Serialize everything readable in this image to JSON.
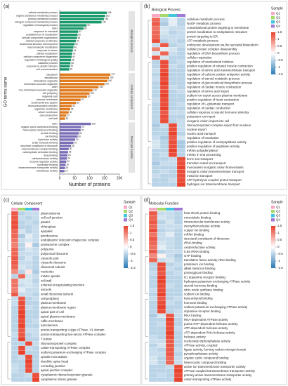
{
  "chart_data": [
    {
      "type": "bar",
      "panel": "(a)",
      "ylabel": "GO terms name",
      "xlabel": "Number of proteins",
      "xlim": [
        0,
        200
      ],
      "xticks": [
        0,
        50,
        100,
        150,
        200
      ],
      "groups": [
        {
          "name": "Biological process",
          "color": "#1a9a6c",
          "categories": [
            "cellular metabolic process",
            "organic substance metabolic process",
            "primary metabolic process",
            "nitrogen compound metabolic process",
            "regulation of biological process",
            "other",
            "response to chemical",
            "establishment of localization",
            "cellular component organization",
            "cellular response to stimulus",
            "anatomical structure development",
            "macromolecule localization",
            "response to stress",
            "cellular localization",
            "cellular component biogenesis",
            "regulation of biological quality",
            "catabolic process",
            "response to abiotic stimulus",
            "cell communication"
          ],
          "values": [
            158,
            152,
            148,
            140,
            90,
            80,
            62,
            60,
            58,
            54,
            50,
            46,
            44,
            42,
            40,
            38,
            36,
            34,
            32
          ]
        },
        {
          "name": "Cellular component",
          "color": "#e07b1e",
          "categories": [
            "cytoplasm",
            "intracellular",
            "intracellular organelle",
            "membrane-bounded organelle",
            "other",
            "non-membrane-bounded organelle",
            "cell periphery",
            "organelle part",
            "plasma membrane",
            "endomembrane system",
            "ribonucleoprotein complex",
            "organelle membrane",
            "whole membrane",
            "cell-cell junction",
            "cell wall"
          ],
          "values": [
            170,
            165,
            160,
            150,
            130,
            110,
            100,
            92,
            70,
            55,
            40,
            35,
            30,
            22,
            18
          ]
        },
        {
          "name": "Molecular function",
          "color": "#7b70b8",
          "categories": [
            "other",
            "organic cyclic compound binding",
            "heterocyclic compound binding",
            "protein binding",
            "ion binding",
            "hydrolase activity",
            "small molecule binding",
            "structural constituent of ribosome",
            "macromolecule complex binding",
            "carbohydrate derivative binding",
            "drug binding",
            "oxidoreductase activity",
            "enzyme regulator activity",
            "nucleotide binding",
            "transmembrane transporter activity",
            "transferase activity"
          ],
          "values": [
            105,
            72,
            70,
            64,
            60,
            52,
            46,
            38,
            30,
            28,
            26,
            24,
            22,
            20,
            18,
            16
          ]
        }
      ]
    },
    {
      "type": "heatmap",
      "panel": "(b)",
      "title": "Biological Process",
      "legend_title": "Sample",
      "columns": [
        "Q1",
        "Q2",
        "Q3",
        "Q4"
      ],
      "column_colors": [
        "#f7a8c4",
        "#a6d96a",
        "#41c6e0",
        "#a07ad6"
      ],
      "colorscale": {
        "colors": [
          "#2c7bb6",
          "#ffffff",
          "#e8412c"
        ],
        "lim": [
          -1.5,
          1.5
        ],
        "ticks": [
          1.5,
          1,
          0.5,
          0,
          -0.5,
          -1,
          -1.5
        ]
      },
      "rows": [
        "cellulose metabolic process",
        "NADP metabolic process",
        "cotranslational protein targeting to membrane",
        "protein localization to endoplasmic reticulum",
        "protein targeting to ER",
        "ATP metabolic process",
        "embryonic development via the syncytial blastoderm",
        "cellular protein complex disassembly",
        "regulation of DNA biosynthetic process",
        "cellular respiration",
        "regulation of translational initiation",
        "positive regulation of striated muscle contraction",
        "regulation of amino acid transmembrane transport",
        "regulation of calcium:sodium antiporter activity",
        "regulation of steroid metabolic process",
        "regulation of glucocorticoid biosynthetic process",
        "regulation of cardiac muscle contraction",
        "regulation of amino acid import",
        "sodium ion export across plasma membrane",
        "positive regulation of heart contraction",
        "regulation of L-glutamate transport",
        "regulation of cardiac conduction",
        "cellular response to steroid hormone stimulus",
        "potassium ion import",
        "inorganic cation import into cell",
        "ribonucleoprotein complex export from nucleus",
        "nuclear export",
        "nucleic acid transport",
        "regulation of translation",
        "positive regulation of endopeptidase activity",
        "positive regulation of peptidase activity",
        "mRNA polyadenylation",
        "mRNA 3'-end processing",
        "ferric iron transport",
        "transition metal ion transport",
        "monovalent inorganic cation homeostasis",
        "inorganic cation transmembrane transport",
        "metal ion transport",
        "ATP hydrolysis coupled proton transport",
        "hydrogen ion transmembrane transport"
      ],
      "values": [
        [
          1.2,
          -0.5,
          -0.2,
          -0.5
        ],
        [
          1.3,
          -0.6,
          -0.2,
          -0.5
        ],
        [
          1.1,
          -0.3,
          -0.4,
          -0.4
        ],
        [
          1.2,
          -0.3,
          -0.5,
          -0.4
        ],
        [
          1.2,
          -0.4,
          -0.4,
          -0.4
        ],
        [
          1.4,
          -0.5,
          -0.4,
          -0.5
        ],
        [
          -0.4,
          1.3,
          -0.5,
          -0.4
        ],
        [
          1.0,
          -0.2,
          -0.3,
          -0.5
        ],
        [
          -0.3,
          1.2,
          -0.4,
          -0.5
        ],
        [
          1.3,
          -0.3,
          -0.5,
          -0.5
        ],
        [
          -0.5,
          1.4,
          -0.5,
          -0.4
        ],
        [
          -0.5,
          1.4,
          -0.4,
          -0.5
        ],
        [
          -0.4,
          1.4,
          -0.5,
          -0.5
        ],
        [
          -0.5,
          1.5,
          -0.5,
          -0.5
        ],
        [
          -0.4,
          1.4,
          -0.5,
          -0.5
        ],
        [
          -0.5,
          1.5,
          -0.5,
          -0.5
        ],
        [
          -0.5,
          1.4,
          -0.4,
          -0.5
        ],
        [
          -0.5,
          1.4,
          -0.5,
          -0.4
        ],
        [
          -0.5,
          1.5,
          -0.5,
          -0.5
        ],
        [
          -0.4,
          1.4,
          -0.5,
          -0.5
        ],
        [
          -0.5,
          1.4,
          -0.5,
          -0.4
        ],
        [
          -0.5,
          1.5,
          -0.5,
          -0.5
        ],
        [
          -0.5,
          1.3,
          -0.4,
          -0.4
        ],
        [
          -0.5,
          1.4,
          -0.5,
          -0.5
        ],
        [
          -0.5,
          1.4,
          -0.5,
          -0.4
        ],
        [
          -0.6,
          -0.4,
          1.4,
          -0.4
        ],
        [
          -0.5,
          -0.5,
          1.4,
          -0.4
        ],
        [
          -0.5,
          -0.5,
          1.5,
          -0.5
        ],
        [
          -0.4,
          -0.6,
          1.3,
          -0.3
        ],
        [
          -0.3,
          -0.5,
          1.4,
          -0.6
        ],
        [
          -0.3,
          -0.5,
          1.4,
          -0.6
        ],
        [
          -0.5,
          -0.5,
          1.5,
          -0.5
        ],
        [
          -0.5,
          -0.4,
          1.4,
          -0.5
        ],
        [
          -0.5,
          -0.5,
          -0.4,
          1.4
        ],
        [
          -0.6,
          -0.4,
          -0.4,
          1.4
        ],
        [
          -0.5,
          -0.5,
          -0.5,
          1.5
        ],
        [
          -0.5,
          -0.4,
          -0.5,
          1.4
        ],
        [
          -0.4,
          -0.5,
          -0.5,
          1.4
        ],
        [
          -0.5,
          -0.5,
          -0.4,
          1.4
        ],
        [
          -0.5,
          -0.5,
          -0.5,
          1.5
        ]
      ]
    },
    {
      "type": "heatmap",
      "panel": "(c)",
      "title": "Cellular Component",
      "legend_title": "Sample",
      "columns": [
        "Q1",
        "Q2",
        "Q3",
        "Q4"
      ],
      "column_colors": [
        "#f7a8c4",
        "#a6d96a",
        "#41c6e0",
        "#a07ad6"
      ],
      "colorscale": {
        "colors": [
          "#2c7bb6",
          "#ffffff",
          "#e8412c"
        ],
        "lim": [
          -1.5,
          1.5
        ],
        "ticks": [
          1.5,
          1,
          0.5,
          0,
          -0.5,
          -1,
          -1.5
        ]
      },
      "rows": [
        "plasmodesma",
        "cell-cell junction",
        "plastid",
        "chloroplast",
        "apoplast",
        "preribosome",
        "endoplasmic reticulum chaperone complex",
        "proteasome complex",
        "polysome",
        "polysomal ribosome",
        "cytosolic part",
        "cytosolic ribosome",
        "ribosomal subunit",
        "nucleolus",
        "mitotic spindle",
        "cell wall",
        "external encapsulating structure",
        "vacuole",
        "small ribosomal subunit",
        "cell periphery",
        "plasma membrane",
        "plasma membrane region",
        "apical part of cell",
        "apical plasma membrane",
        "ruffle membrane",
        "sarcolemma",
        "proton-transporting V-type ATPase, V1 domain",
        "proton-transporting two-sector ATPase complex",
        "T-tubule",
        "ribonucleoprotein complex",
        "cation-transporting ATPase complex",
        "sodium:potassium-exchanging ATPase complex",
        "spindle microtubule",
        "dendritic spine head",
        "occluding junction",
        "apical junction complex",
        "cytoplasmic ribonucleoprotein granule",
        "cytoplasmic stress granule"
      ],
      "values": [
        [
          1.3,
          -0.5,
          -0.4,
          -0.4
        ],
        [
          1.3,
          -0.4,
          -0.5,
          -0.4
        ],
        [
          1.4,
          -0.5,
          -0.4,
          -0.5
        ],
        [
          1.4,
          -0.5,
          -0.5,
          -0.4
        ],
        [
          1.2,
          -0.3,
          -0.5,
          -0.4
        ],
        [
          1.2,
          -0.6,
          -0.2,
          -0.4
        ],
        [
          1.1,
          -0.4,
          -0.3,
          -0.4
        ],
        [
          1.0,
          -0.5,
          0.1,
          -0.6
        ],
        [
          1.2,
          -0.5,
          -0.3,
          -0.4
        ],
        [
          1.2,
          -0.4,
          -0.4,
          -0.4
        ],
        [
          1.3,
          -0.5,
          -0.3,
          -0.5
        ],
        [
          1.3,
          -0.4,
          -0.4,
          -0.5
        ],
        [
          1.2,
          -0.3,
          -0.4,
          -0.5
        ],
        [
          0.9,
          -0.5,
          0.2,
          -0.6
        ],
        [
          -0.5,
          1.2,
          -0.3,
          -0.4
        ],
        [
          1.1,
          -0.3,
          -0.3,
          -0.5
        ],
        [
          1.1,
          -0.4,
          -0.3,
          -0.4
        ],
        [
          1.0,
          -0.2,
          -0.4,
          -0.4
        ],
        [
          1.3,
          -0.4,
          -0.4,
          -0.5
        ],
        [
          -0.4,
          1.3,
          -0.5,
          -0.4
        ],
        [
          -0.4,
          1.4,
          -0.5,
          -0.5
        ],
        [
          -0.5,
          1.4,
          -0.4,
          -0.5
        ],
        [
          -0.5,
          1.5,
          -0.5,
          -0.5
        ],
        [
          -0.5,
          1.5,
          -0.5,
          -0.5
        ],
        [
          -0.5,
          1.4,
          -0.5,
          -0.4
        ],
        [
          -0.5,
          1.5,
          -0.5,
          -0.5
        ],
        [
          -0.5,
          1.3,
          -0.4,
          -0.4
        ],
        [
          -0.4,
          1.3,
          -0.5,
          -0.4
        ],
        [
          -0.5,
          1.5,
          -0.5,
          -0.5
        ],
        [
          -0.5,
          -0.5,
          1.4,
          -0.4
        ],
        [
          -0.5,
          1.4,
          -0.4,
          -0.5
        ],
        [
          -0.5,
          1.5,
          -0.5,
          -0.5
        ],
        [
          -0.5,
          -0.4,
          1.4,
          -0.5
        ],
        [
          -0.5,
          -0.5,
          1.5,
          -0.5
        ],
        [
          -0.4,
          -0.5,
          1.4,
          -0.5
        ],
        [
          -0.4,
          -0.5,
          1.4,
          -0.5
        ],
        [
          -0.5,
          -0.5,
          -0.4,
          1.4
        ],
        [
          -0.5,
          -0.5,
          -0.5,
          1.5
        ]
      ]
    },
    {
      "type": "heatmap",
      "panel": "(d)",
      "title": "Molecular Function",
      "legend_title": "Sample",
      "columns": [
        "Q1",
        "Q2",
        "Q3",
        "Q4"
      ],
      "column_colors": [
        "#f7a8c4",
        "#a6d96a",
        "#41c6e0",
        "#a07ad6"
      ],
      "colorscale": {
        "colors": [
          "#2c7bb6",
          "#ffffff",
          "#e8412c"
        ],
        "lim": [
          -1.5,
          1.5
        ],
        "ticks": [
          1.5,
          1,
          0.5,
          0,
          -0.5,
          -1,
          -1.5
        ]
      },
      "rows": [
        "heat shock protein binding",
        "microtubule binding",
        "intramolecular transferase activity",
        "deoxyribonuclease activity",
        "copper ion binding",
        "mRNA binding",
        "structural constituent of ribosome",
        "rRNA binding",
        "oxidoreductase activity",
        "5.8S rRNA binding",
        "GTP binding",
        "translation factor activity, RNA binding",
        "potassium ion binding",
        "alkali metal ion binding",
        "proteoglycan binding",
        "D1 dopamine receptor binding",
        "hydrogen:potassium-exchanging ATPase activity",
        "steroid hormone binding",
        "nitric-oxide synthase binding",
        "sodium ion binding",
        "beta-amyloid binding",
        "hormone binding",
        "sodium:potassium-exchanging ATPase activity",
        "dopamine receptor binding",
        "RNA binding",
        "RNA-dependent ATPase activity",
        "purine NTP-dependent helicase activity",
        "ATP-dependent helicase activity",
        "ATP-dependent RNA helicase activity",
        "helicase activity",
        "nucleoside-triphosphatase activity",
        "ATPase activity, coupled",
        "ligase activity, forming carbon-nitrogen bonds",
        "pyrophosphatase activity",
        "organic cyclic compound binding",
        "heterocyclic compound binding",
        "active ion transmembrane transporter activity",
        "ATPase coupled transmembrane transporter activity",
        "primary active transmembrane transporter activity",
        "cation-transporting ATPase activity"
      ],
      "values": [
        [
          1.3,
          -0.4,
          -0.4,
          -0.5
        ],
        [
          1.2,
          -0.3,
          -0.4,
          -0.5
        ],
        [
          1.3,
          -0.5,
          -0.3,
          -0.5
        ],
        [
          1.2,
          -0.4,
          -0.4,
          -0.4
        ],
        [
          1.4,
          -0.5,
          -0.4,
          -0.5
        ],
        [
          1.1,
          -0.4,
          -0.2,
          -0.5
        ],
        [
          1.3,
          -0.4,
          -0.4,
          -0.5
        ],
        [
          1.2,
          -0.3,
          -0.4,
          -0.5
        ],
        [
          1.1,
          -0.2,
          -0.4,
          -0.5
        ],
        [
          1.3,
          -0.5,
          -0.4,
          -0.4
        ],
        [
          0.9,
          0.1,
          -0.4,
          -0.6
        ],
        [
          1.2,
          -0.4,
          -0.3,
          -0.5
        ],
        [
          -0.5,
          1.4,
          -0.5,
          -0.4
        ],
        [
          -0.5,
          1.4,
          -0.4,
          -0.5
        ],
        [
          -0.4,
          1.3,
          -0.5,
          -0.4
        ],
        [
          -0.5,
          1.5,
          -0.5,
          -0.5
        ],
        [
          -0.5,
          1.5,
          -0.5,
          -0.5
        ],
        [
          -0.5,
          1.4,
          -0.4,
          -0.5
        ],
        [
          -0.4,
          1.4,
          -0.5,
          -0.5
        ],
        [
          -0.5,
          1.5,
          -0.5,
          -0.5
        ],
        [
          -0.4,
          1.3,
          -0.5,
          -0.4
        ],
        [
          -0.5,
          1.4,
          -0.4,
          -0.5
        ],
        [
          -0.5,
          1.5,
          -0.5,
          -0.5
        ],
        [
          -0.5,
          1.4,
          -0.5,
          -0.4
        ],
        [
          -0.6,
          -0.3,
          1.3,
          -0.4
        ],
        [
          -0.5,
          -0.5,
          1.5,
          -0.5
        ],
        [
          -0.5,
          -0.4,
          1.4,
          -0.5
        ],
        [
          -0.5,
          -0.5,
          1.4,
          -0.4
        ],
        [
          -0.5,
          -0.5,
          1.5,
          -0.5
        ],
        [
          -0.4,
          -0.5,
          1.4,
          -0.5
        ],
        [
          -0.4,
          -0.4,
          1.3,
          -0.5
        ],
        [
          -0.5,
          -0.3,
          1.3,
          -0.5
        ],
        [
          -0.4,
          -0.5,
          1.3,
          -0.4
        ],
        [
          -0.4,
          -0.4,
          1.3,
          -0.5
        ],
        [
          -0.3,
          -0.5,
          1.2,
          -0.4
        ],
        [
          -0.3,
          -0.5,
          1.2,
          -0.4
        ],
        [
          -0.5,
          -0.5,
          -0.4,
          1.4
        ],
        [
          -0.5,
          -0.5,
          -0.5,
          1.5
        ],
        [
          -0.5,
          -0.4,
          -0.5,
          1.4
        ],
        [
          -0.5,
          -0.5,
          -0.5,
          1.5
        ]
      ]
    }
  ]
}
